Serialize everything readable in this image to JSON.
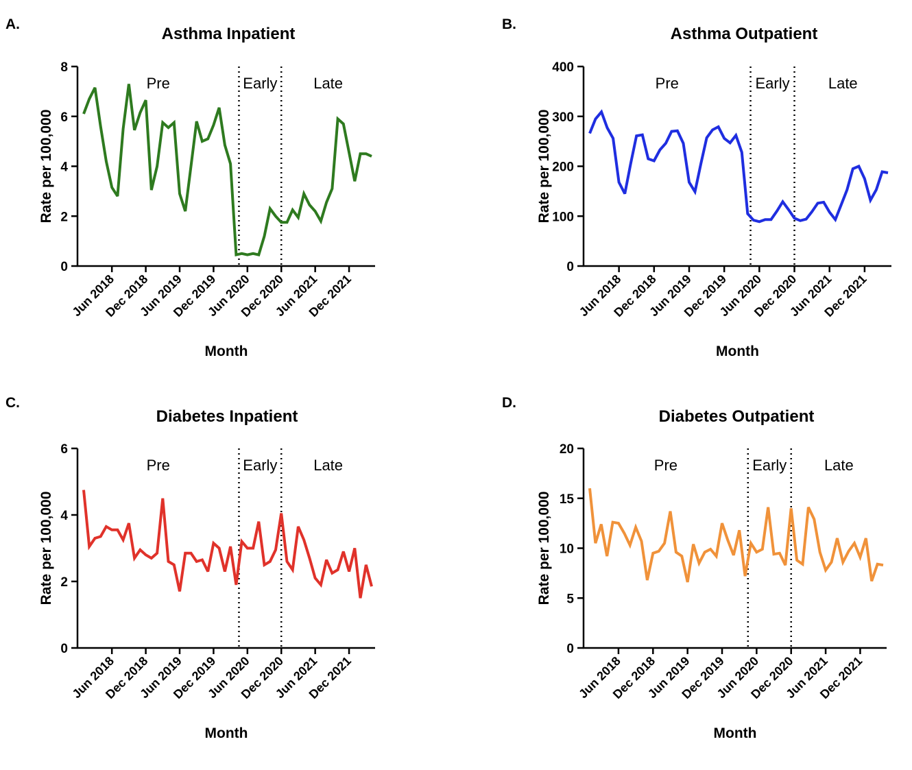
{
  "chart_data": [
    {
      "type": "line",
      "panel": "A.",
      "title": "Asthma Inpatient",
      "xlabel": "Month",
      "ylabel": "Rate per 100,000",
      "ylim": [
        0,
        8
      ],
      "yticks": [
        "0",
        "2",
        "4",
        "6",
        "8"
      ],
      "xticks": [
        "Jun 2018",
        "Dec 2018",
        "Jun 2019",
        "Dec 2019",
        "Jun 2020",
        "Dec 2020",
        "Jun 2021",
        "Dec 2021"
      ],
      "xtick_months": [
        5,
        11,
        17,
        23,
        29,
        35,
        41,
        47
      ],
      "periods": [
        "Pre",
        "Early",
        "Late"
      ],
      "dividers_month": [
        27.5,
        35
      ],
      "color": "#2e7a1f",
      "series": [
        {
          "values": [
            6.1,
            6.7,
            7.15,
            5.6,
            4.2,
            3.15,
            2.8,
            5.5,
            7.3,
            5.45,
            6.15,
            6.65,
            3.05,
            4.0,
            5.75,
            5.55,
            5.75,
            2.9,
            2.2,
            4.0,
            5.8,
            5.0,
            5.1,
            5.65,
            6.35,
            4.85,
            4.1,
            0.45,
            0.5,
            0.45,
            0.5,
            0.45,
            1.2,
            2.3,
            2.0,
            1.75,
            1.75,
            2.25,
            1.95,
            2.9,
            2.45,
            2.2,
            1.8,
            2.55,
            3.1,
            5.9,
            5.7,
            4.55,
            3.4,
            4.5,
            4.5,
            4.4
          ]
        }
      ]
    },
    {
      "type": "line",
      "panel": "B.",
      "title": "Asthma Outpatient",
      "xlabel": "Month",
      "ylabel": "Rate per 100,000",
      "ylim": [
        0,
        400
      ],
      "yticks": [
        "0",
        "100",
        "200",
        "300",
        "400"
      ],
      "xticks": [
        "Jun 2018",
        "Dec 2018",
        "Jun 2019",
        "Dec 2019",
        "Jun 2020",
        "Dec 2020",
        "Jun 2021",
        "Dec 2021"
      ],
      "xtick_months": [
        5,
        11,
        17,
        23,
        29,
        35,
        41,
        47
      ],
      "periods": [
        "Pre",
        "Early",
        "Late"
      ],
      "dividers_month": [
        27.5,
        35
      ],
      "color": "#1f2ee0",
      "series": [
        {
          "values": [
            266,
            295,
            309,
            277,
            256,
            168,
            145,
            205,
            261,
            263,
            215,
            211,
            233,
            246,
            270,
            271,
            246,
            168,
            149,
            205,
            257,
            273,
            279,
            256,
            247,
            262,
            228,
            105,
            92,
            89,
            93,
            93,
            110,
            129,
            113,
            96,
            91,
            94,
            109,
            126,
            128,
            108,
            93,
            123,
            153,
            195,
            200,
            175,
            132,
            153,
            189,
            187
          ]
        }
      ]
    },
    {
      "type": "line",
      "panel": "C.",
      "title": "Diabetes Inpatient",
      "xlabel": "Month",
      "ylabel": "Rate per 100,000",
      "ylim": [
        0,
        6
      ],
      "yticks": [
        "0",
        "2",
        "4",
        "6"
      ],
      "xticks": [
        "Jun 2018",
        "Dec 2018",
        "Jun 2019",
        "Dec 2019",
        "Jun 2020",
        "Dec 2020",
        "Jun 2021",
        "Dec 2021"
      ],
      "xtick_months": [
        5,
        11,
        17,
        23,
        29,
        35,
        41,
        47
      ],
      "periods": [
        "Pre",
        "Early",
        "Late"
      ],
      "dividers_month": [
        27.5,
        35
      ],
      "color": "#e0322a",
      "series": [
        {
          "values": [
            4.75,
            3.05,
            3.3,
            3.35,
            3.65,
            3.55,
            3.55,
            3.25,
            3.75,
            2.7,
            2.95,
            2.8,
            2.7,
            2.85,
            4.5,
            2.6,
            2.5,
            1.7,
            2.85,
            2.85,
            2.6,
            2.65,
            2.3,
            3.15,
            3.0,
            2.3,
            3.05,
            1.9,
            3.2,
            3.0,
            3.0,
            3.8,
            2.5,
            2.6,
            2.95,
            4.05,
            2.6,
            2.35,
            3.65,
            3.25,
            2.7,
            2.1,
            1.9,
            2.65,
            2.25,
            2.35,
            2.9,
            2.3,
            3.0,
            1.5,
            2.5,
            1.85
          ]
        }
      ]
    },
    {
      "type": "line",
      "panel": "D.",
      "title": "Diabetes Outpatient",
      "xlabel": "Month",
      "ylabel": "Rate per 100,000",
      "ylim": [
        0,
        20
      ],
      "yticks": [
        "0",
        "5",
        "10",
        "15",
        "20"
      ],
      "xticks": [
        "Jun 2018",
        "Dec 2018",
        "Jun 2019",
        "Dec 2019",
        "Jun 2020",
        "Dec 2020",
        "Jun 2021",
        "Dec 2021"
      ],
      "xtick_months": [
        5,
        11,
        17,
        23,
        29,
        35,
        41,
        47
      ],
      "periods": [
        "Pre",
        "Early",
        "Late"
      ],
      "dividers_month": [
        27.5,
        35
      ],
      "color": "#f0923a",
      "series": [
        {
          "values": [
            16.0,
            10.5,
            12.4,
            9.2,
            12.6,
            12.5,
            11.5,
            10.3,
            12.1,
            10.7,
            6.8,
            9.5,
            9.7,
            10.5,
            13.7,
            9.6,
            9.2,
            6.6,
            10.4,
            8.5,
            9.6,
            9.9,
            9.2,
            12.5,
            10.8,
            9.3,
            11.8,
            7.2,
            10.5,
            9.6,
            9.9,
            14.1,
            9.4,
            9.5,
            8.3,
            14.0,
            8.8,
            8.4,
            14.1,
            12.9,
            9.6,
            7.8,
            8.6,
            11.0,
            8.6,
            9.7,
            10.5,
            9.1,
            11.0,
            6.7,
            8.4,
            8.3
          ]
        }
      ]
    }
  ]
}
